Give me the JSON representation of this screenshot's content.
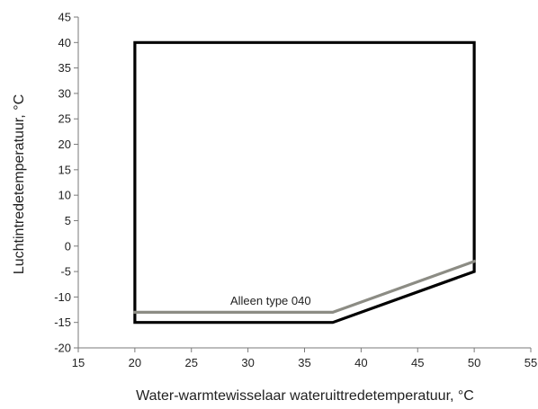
{
  "chart_data": {
    "type": "line",
    "title": "",
    "xlabel": "Water-warmtewisselaar wateruittredetemperatuur, °C",
    "ylabel": "Luchtintredetemperatuur, °C",
    "xlim": [
      15,
      55
    ],
    "ylim": [
      -20,
      45
    ],
    "x_ticks": [
      15,
      20,
      25,
      30,
      35,
      40,
      45,
      50,
      55
    ],
    "y_ticks": [
      45,
      40,
      35,
      30,
      25,
      20,
      15,
      10,
      5,
      0,
      -5,
      -10,
      -15,
      -20
    ],
    "grid": false,
    "legend": "none",
    "series": [
      {
        "color": "#000000",
        "points": [
          [
            20,
            40
          ],
          [
            50,
            40
          ],
          [
            50,
            -5
          ],
          [
            37.5,
            -15
          ],
          [
            20,
            -15
          ],
          [
            20,
            40
          ]
        ]
      },
      {
        "color": "#8c8c84",
        "points": [
          [
            20,
            -13
          ],
          [
            37.5,
            -13
          ],
          [
            50,
            -3
          ]
        ]
      }
    ],
    "annotations": [
      {
        "text": "Alleen type 040",
        "x": 32,
        "y": -11.5
      }
    ]
  }
}
